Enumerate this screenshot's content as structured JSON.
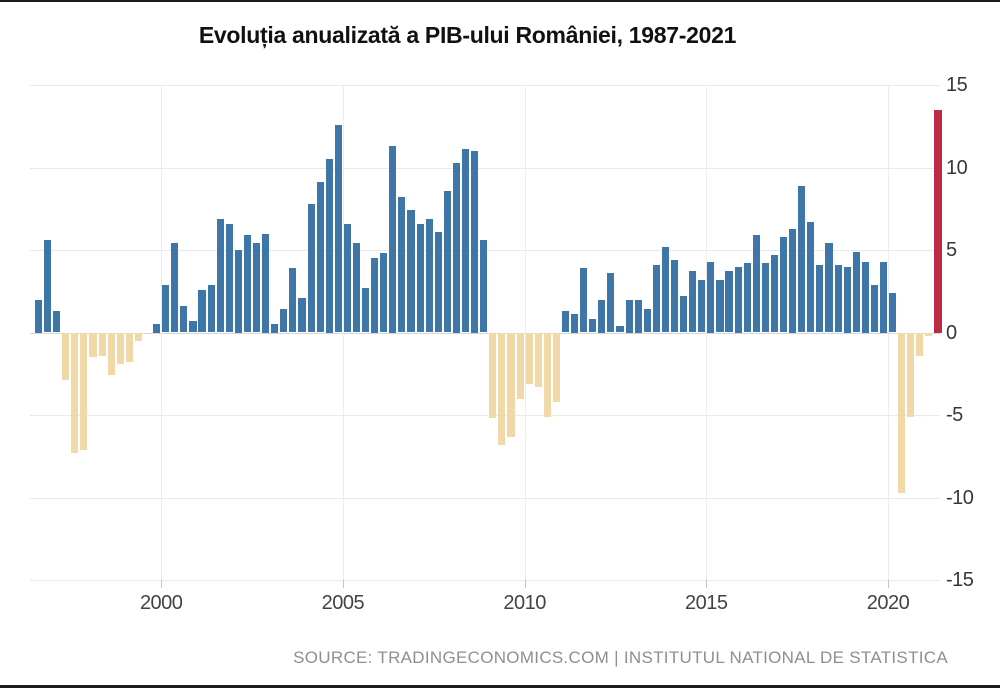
{
  "source_text": "SOURCE: TRADINGECONOMICS.COM | INSTITUTUL NATIONAL DE STATISTICA",
  "chart_data": {
    "type": "bar",
    "title": "Evoluția anualizată a PIB-ului României, 1987-2021",
    "x": [
      "1996-Q3",
      "1996-Q4",
      "1997-Q1",
      "1997-Q2",
      "1997-Q3",
      "1997-Q4",
      "1998-Q1",
      "1998-Q2",
      "1998-Q3",
      "1998-Q4",
      "1999-Q1",
      "1999-Q2",
      "1999-Q3",
      "1999-Q4",
      "2000-Q1",
      "2000-Q2",
      "2000-Q3",
      "2000-Q4",
      "2001-Q1",
      "2001-Q2",
      "2001-Q3",
      "2001-Q4",
      "2002-Q1",
      "2002-Q2",
      "2002-Q3",
      "2002-Q4",
      "2003-Q1",
      "2003-Q2",
      "2003-Q3",
      "2003-Q4",
      "2004-Q1",
      "2004-Q2",
      "2004-Q3",
      "2004-Q4",
      "2005-Q1",
      "2005-Q2",
      "2005-Q3",
      "2005-Q4",
      "2006-Q1",
      "2006-Q2",
      "2006-Q3",
      "2006-Q4",
      "2007-Q1",
      "2007-Q2",
      "2007-Q3",
      "2007-Q4",
      "2008-Q1",
      "2008-Q2",
      "2008-Q3",
      "2008-Q4",
      "2009-Q1",
      "2009-Q2",
      "2009-Q3",
      "2009-Q4",
      "2010-Q1",
      "2010-Q2",
      "2010-Q3",
      "2010-Q4",
      "2011-Q1",
      "2011-Q2",
      "2011-Q3",
      "2011-Q4",
      "2012-Q1",
      "2012-Q2",
      "2012-Q3",
      "2012-Q4",
      "2013-Q1",
      "2013-Q2",
      "2013-Q3",
      "2013-Q4",
      "2014-Q1",
      "2014-Q2",
      "2014-Q3",
      "2014-Q4",
      "2015-Q1",
      "2015-Q2",
      "2015-Q3",
      "2015-Q4",
      "2016-Q1",
      "2016-Q2",
      "2016-Q3",
      "2016-Q4",
      "2017-Q1",
      "2017-Q2",
      "2017-Q3",
      "2017-Q4",
      "2018-Q1",
      "2018-Q2",
      "2018-Q3",
      "2018-Q4",
      "2019-Q1",
      "2019-Q2",
      "2019-Q3",
      "2019-Q4",
      "2020-Q1",
      "2020-Q2",
      "2020-Q3",
      "2020-Q4",
      "2021-Q1",
      "2021-Q2"
    ],
    "values": [
      2.0,
      5.6,
      1.3,
      -2.9,
      -7.3,
      -7.1,
      -1.5,
      -1.4,
      -2.6,
      -1.9,
      -1.8,
      -0.5,
      0,
      0.5,
      2.9,
      5.4,
      1.6,
      0.7,
      2.6,
      2.9,
      6.9,
      6.6,
      5.0,
      5.9,
      5.4,
      6.0,
      0.5,
      1.4,
      3.9,
      2.1,
      7.8,
      9.1,
      10.5,
      12.6,
      6.6,
      5.4,
      2.7,
      4.5,
      4.8,
      11.3,
      8.2,
      7.4,
      6.6,
      6.9,
      6.1,
      8.6,
      10.3,
      11.1,
      11.0,
      5.6,
      -5.2,
      -6.8,
      -6.3,
      -4.0,
      -3.1,
      -3.3,
      -5.1,
      -4.2,
      1.3,
      1.1,
      3.9,
      0.8,
      2.0,
      3.6,
      0.4,
      2.0,
      2.0,
      1.4,
      4.1,
      5.2,
      4.4,
      2.2,
      3.7,
      3.2,
      4.3,
      3.2,
      3.7,
      4.0,
      4.2,
      5.9,
      4.2,
      4.7,
      5.8,
      6.3,
      8.9,
      6.7,
      4.1,
      5.4,
      4.1,
      4.0,
      4.9,
      4.3,
      2.9,
      4.3,
      2.4,
      -9.7,
      -5.1,
      -1.4,
      -0.2,
      13.5
    ],
    "x_tick_years": [
      2000,
      2005,
      2010,
      2015,
      2020
    ],
    "x_tick_labels": [
      "2000",
      "2005",
      "2010",
      "2015",
      "2020"
    ],
    "y_ticks": [
      15,
      10,
      5,
      0,
      -5,
      -10,
      -15
    ],
    "y_tick_labels": [
      "15",
      "10",
      "5",
      "0",
      "-5",
      "-10",
      "-15"
    ],
    "ylim": [
      -15,
      15
    ],
    "grid": true,
    "legend": false,
    "highlight_last": true,
    "colors": {
      "positive": "#3e76a8",
      "negative": "#f1d9a7",
      "highlight": "#bf2b45"
    }
  }
}
